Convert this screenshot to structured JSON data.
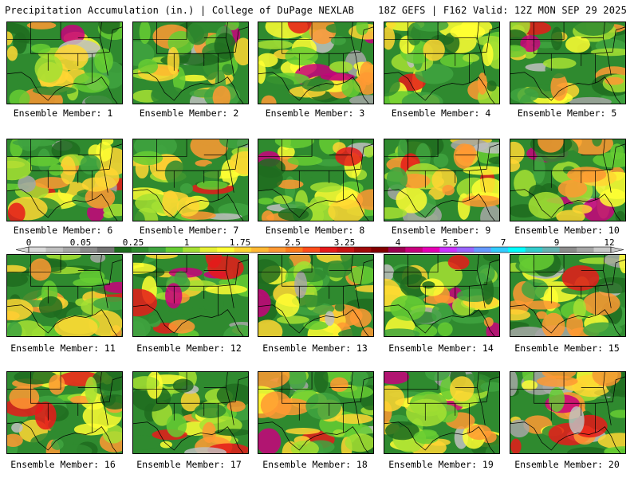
{
  "header": {
    "title": "Precipitation Accumulation (in.) | College of DuPage NEXLAB",
    "run_info": "18Z GEFS | F162 Valid: 12Z MON SEP 29 2025"
  },
  "panels": [
    {
      "member": 1,
      "label": "Ensemble Member: 1"
    },
    {
      "member": 2,
      "label": "Ensemble Member: 2"
    },
    {
      "member": 3,
      "label": "Ensemble Member: 3"
    },
    {
      "member": 4,
      "label": "Ensemble Member: 4"
    },
    {
      "member": 5,
      "label": "Ensemble Member: 5"
    },
    {
      "member": 6,
      "label": "Ensemble Member: 6"
    },
    {
      "member": 7,
      "label": "Ensemble Member: 7"
    },
    {
      "member": 8,
      "label": "Ensemble Member: 8"
    },
    {
      "member": 9,
      "label": "Ensemble Member: 9"
    },
    {
      "member": 10,
      "label": "Ensemble Member: 10"
    },
    {
      "member": 11,
      "label": "Ensemble Member: 11"
    },
    {
      "member": 12,
      "label": "Ensemble Member: 12"
    },
    {
      "member": 13,
      "label": "Ensemble Member: 13"
    },
    {
      "member": 14,
      "label": "Ensemble Member: 14"
    },
    {
      "member": 15,
      "label": "Ensemble Member: 15"
    },
    {
      "member": 16,
      "label": "Ensemble Member: 16"
    },
    {
      "member": 17,
      "label": "Ensemble Member: 17"
    },
    {
      "member": 18,
      "label": "Ensemble Member: 18"
    },
    {
      "member": 19,
      "label": "Ensemble Member: 19"
    },
    {
      "member": 20,
      "label": "Ensemble Member: 20"
    }
  ],
  "colorbar": {
    "tick_labels": [
      "0",
      "0.05",
      "0.25",
      "1",
      "1.75",
      "2.5",
      "3.25",
      "4",
      "5.5",
      "7",
      "9",
      "12"
    ],
    "colors": [
      "#d9d9d9",
      "#bfbfbf",
      "#a6a6a6",
      "#8c8c8c",
      "#737373",
      "#1e6b1e",
      "#2f8a2f",
      "#3fa33f",
      "#66cc33",
      "#a6e033",
      "#e6f033",
      "#ffff33",
      "#ffd633",
      "#ffb833",
      "#ff9933",
      "#ff7a1a",
      "#ff4d1a",
      "#e61a1a",
      "#c81414",
      "#a00a0a",
      "#820000",
      "#9b0050",
      "#c8007d",
      "#e600b4",
      "#cc33ff",
      "#9966ff",
      "#6699ff",
      "#33ccff",
      "#00ffff",
      "#33cccc",
      "#66b2b2",
      "#8c8c8c",
      "#a6a6a6",
      "#c8c8c8"
    ]
  }
}
